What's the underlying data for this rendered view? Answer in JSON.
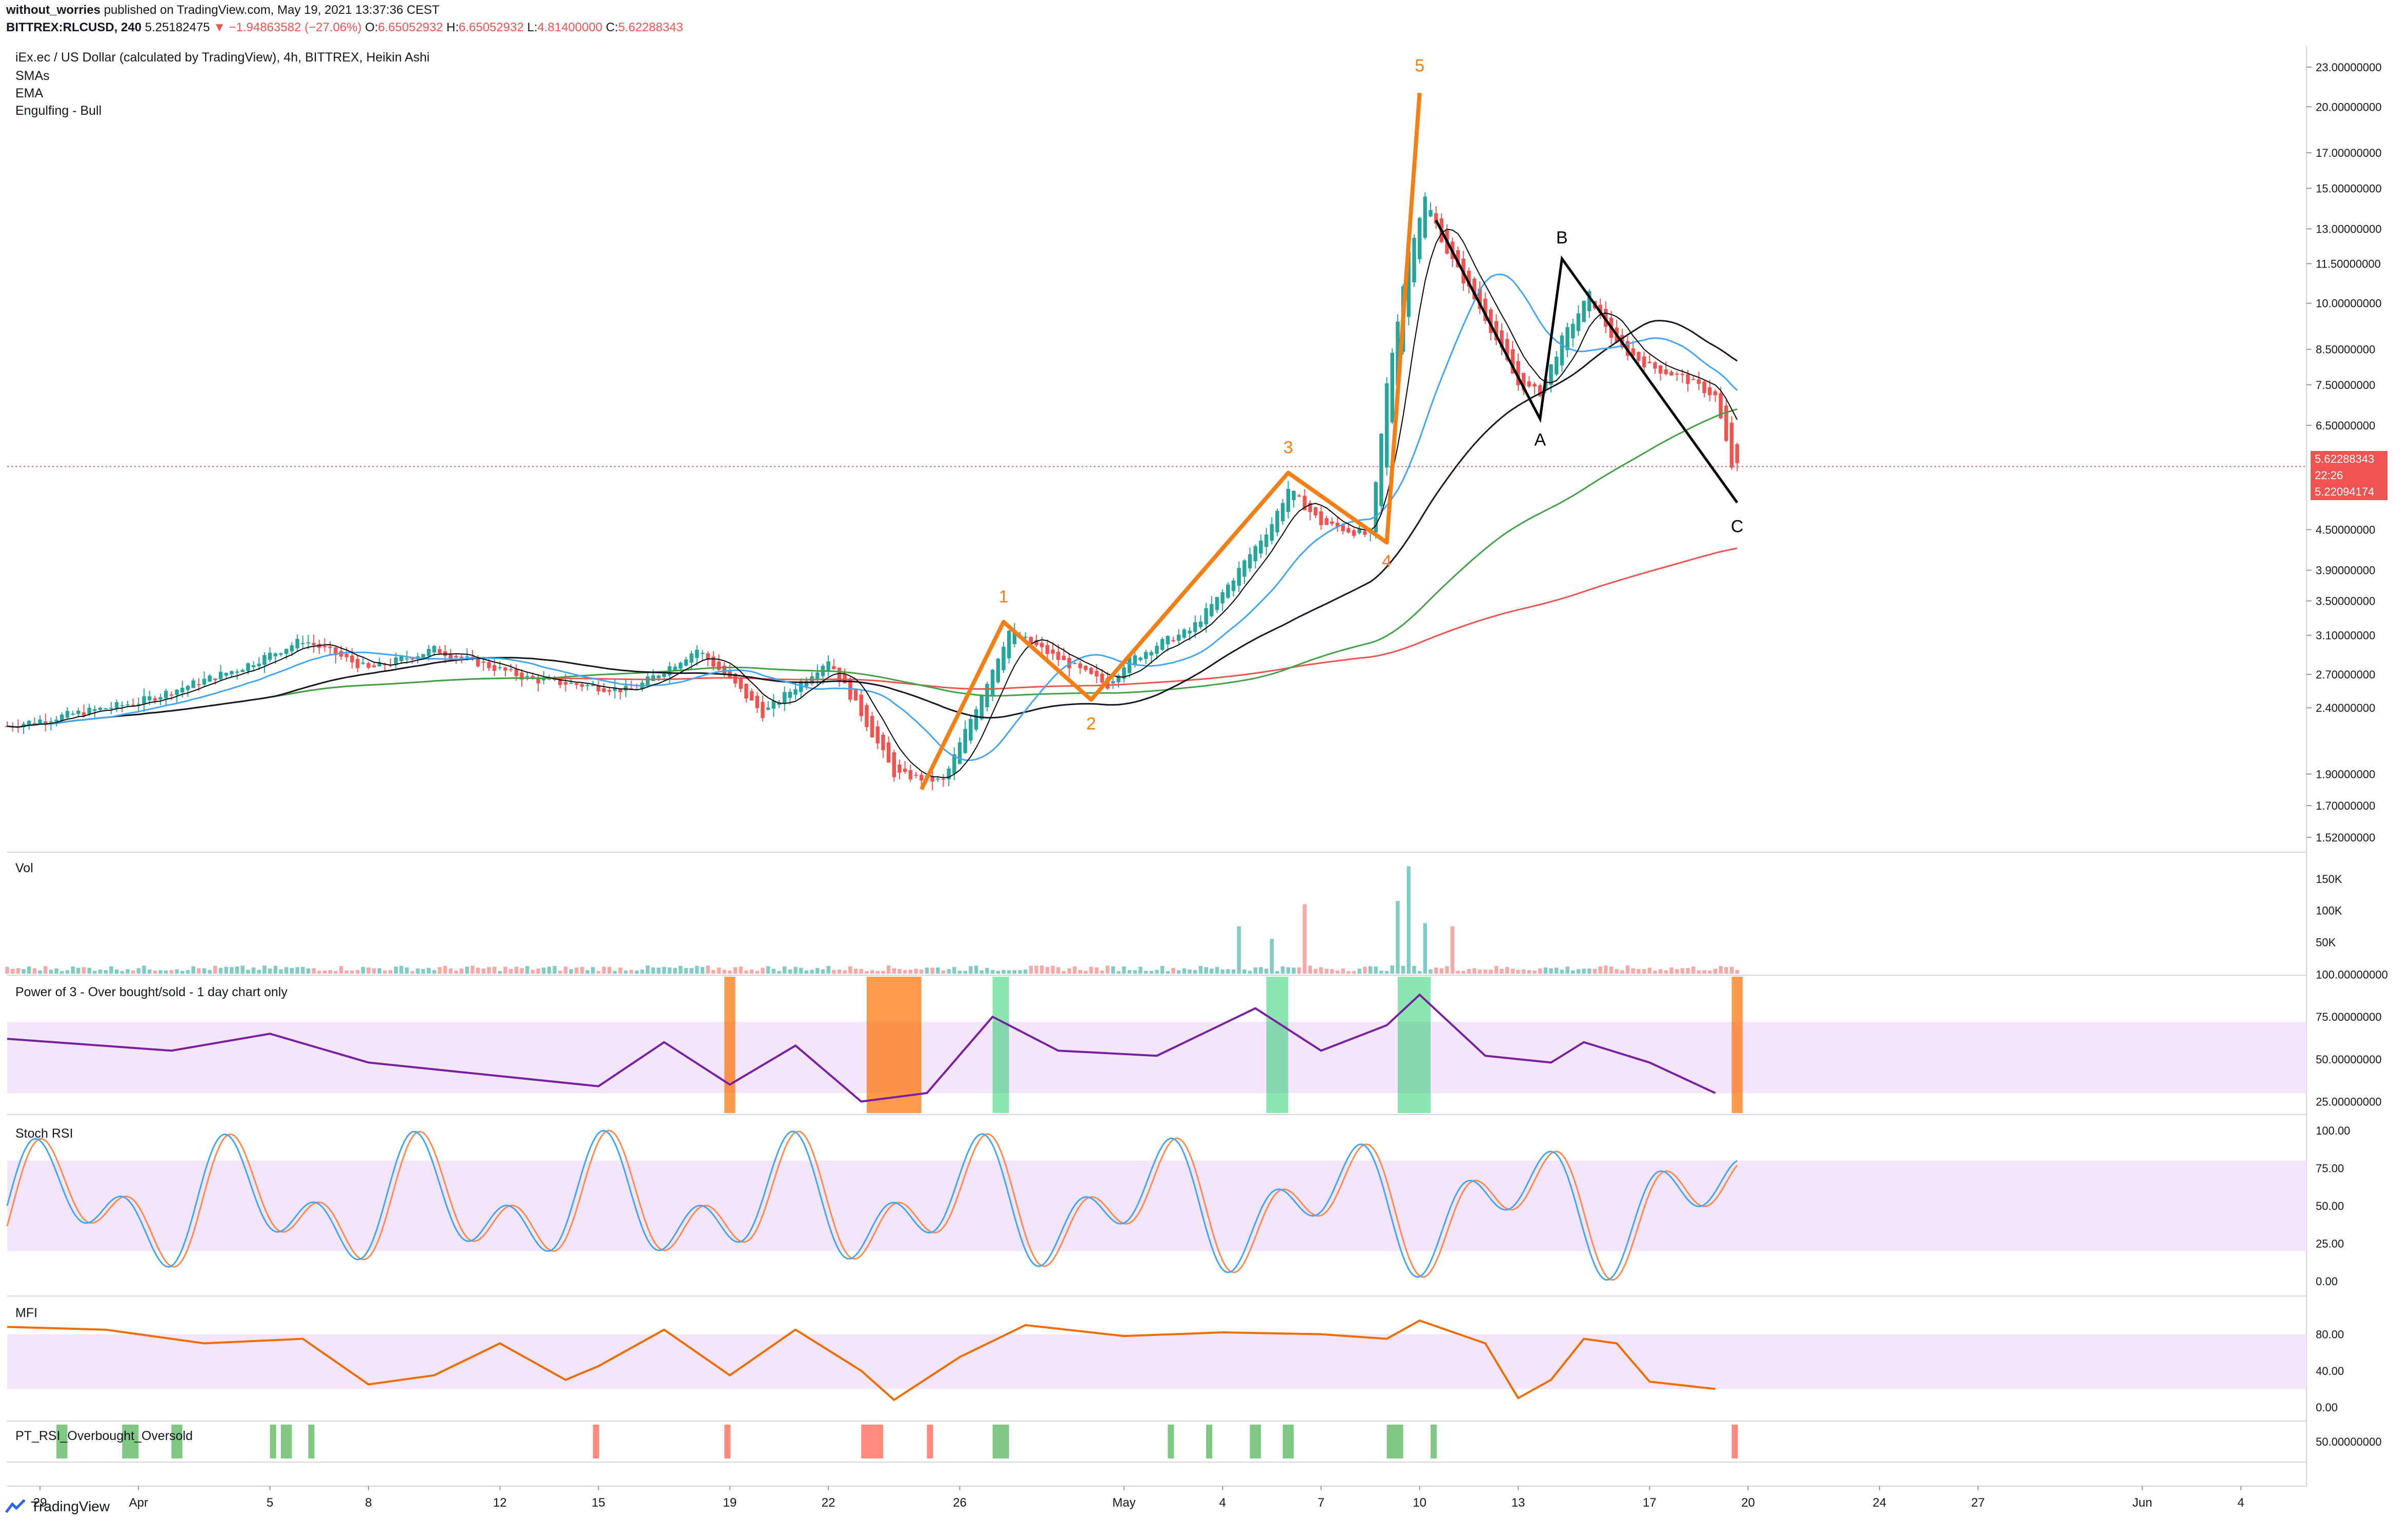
{
  "header": {
    "author": "without_worries",
    "published": "published on TradingView.com, May 19, 2021 13:37:36 CEST",
    "symbol": "BITTREX:RLCUSD, 240",
    "last": "5.25182475",
    "change_arrow": "▼",
    "change": "−1.94863582 (−27.06%)",
    "ohlc": {
      "o_label": "O:",
      "o": "6.65052932",
      "h_label": "H:",
      "h": "6.65052932",
      "l_label": "L:",
      "l": "4.81400000",
      "c_label": "C:",
      "c": "5.62288343"
    }
  },
  "legend": {
    "title": "iEx.ec / US Dollar (calculated by TradingView), 4h, BITTREX, Heikin Ashi",
    "indicators": [
      "SMAs",
      "EMA",
      "Engulfing - Bull"
    ],
    "pane_titles": {
      "volume": "Vol",
      "power3": "Power of 3 - Over bought/sold - 1 day chart only",
      "stoch": "Stoch RSI",
      "mfi": "MFI",
      "ptrsi": "PT_RSI_Overbought_Oversold"
    }
  },
  "price_tag": {
    "price": "5.62288343",
    "countdown": "22:26",
    "low": "5.22094174"
  },
  "colors": {
    "up": "#26a69a",
    "down": "#f05350",
    "wave": "#f57f17",
    "abc": "#000000",
    "sma_blue": "#42a5f5",
    "sma_black": "#131722",
    "sma_green": "#43a047",
    "sma_red": "#ef5350",
    "power_line": "#7b1fa2",
    "band_fill": "#f3e5fa",
    "stoch_k": "#42a5f5",
    "stoch_d": "#ff8a50",
    "mfi_line": "#ef6c00",
    "ob_green": "#00c853",
    "os_orange": "#ff6d00",
    "pt_green": "#4caf50",
    "pt_red": "#ff5252"
  },
  "footer": {
    "brand": "TradingView",
    "logo_icon": "tradingview-logo-icon"
  },
  "chart_data": {
    "type": "candlestick",
    "title": "iEx.ec / US Dollar (calculated by TradingView), 4h, BITTREX, Heikin Ashi",
    "x_axis": {
      "ticks": [
        "29",
        "Apr",
        "5",
        "8",
        "12",
        "15",
        "19",
        "22",
        "26",
        "May",
        "4",
        "7",
        "10",
        "13",
        "17",
        "20",
        "24",
        "27",
        "Jun",
        "4"
      ],
      "tick_dates": [
        "2021-03-29",
        "2021-04-01",
        "2021-04-05",
        "2021-04-08",
        "2021-04-12",
        "2021-04-15",
        "2021-04-19",
        "2021-04-22",
        "2021-04-26",
        "2021-05-01",
        "2021-05-04",
        "2021-05-07",
        "2021-05-10",
        "2021-05-13",
        "2021-05-17",
        "2021-05-20",
        "2021-05-24",
        "2021-05-27",
        "2021-06-01",
        "2021-06-04"
      ]
    },
    "y_axis": {
      "scale": "log",
      "ticks": [
        "23.00000000",
        "20.00000000",
        "17.00000000",
        "15.00000000",
        "13.00000000",
        "11.50000000",
        "10.00000000",
        "8.50000000",
        "7.50000000",
        "6.50000000",
        "5.62288343",
        "4.50000000",
        "3.90000000",
        "3.50000000",
        "3.10000000",
        "2.70000000",
        "2.40000000",
        "1.90000000",
        "1.70000000",
        "1.52000000"
      ],
      "range": [
        1.45,
        24.5
      ]
    },
    "price_key_points": [
      {
        "date": "2021-03-28T00:00",
        "close": 2.25
      },
      {
        "date": "2021-04-01T00:00",
        "close": 2.45
      },
      {
        "date": "2021-04-04T00:00",
        "close": 2.75
      },
      {
        "date": "2021-04-06T00:00",
        "close": 3.05
      },
      {
        "date": "2021-04-08T00:00",
        "close": 2.75
      },
      {
        "date": "2021-04-10T00:00",
        "close": 2.95
      },
      {
        "date": "2021-04-13T00:00",
        "close": 2.65
      },
      {
        "date": "2021-04-16T00:00",
        "close": 2.55
      },
      {
        "date": "2021-04-18T00:00",
        "close": 2.95
      },
      {
        "date": "2021-04-19T00:00",
        "close": 2.65
      },
      {
        "date": "2021-04-20T00:00",
        "close": 2.35
      },
      {
        "date": "2021-04-22T00:00",
        "close": 2.85
      },
      {
        "date": "2021-04-23T00:00",
        "close": 2.35
      },
      {
        "date": "2021-04-24T00:00",
        "close": 1.9
      },
      {
        "date": "2021-04-25T12:00",
        "close": 1.85
      },
      {
        "date": "2021-04-27T12:00",
        "close": 3.15
      },
      {
        "date": "2021-04-29T00:00",
        "close": 2.85
      },
      {
        "date": "2021-04-30T12:00",
        "close": 2.6
      },
      {
        "date": "2021-05-01T00:00",
        "close": 2.8
      },
      {
        "date": "2021-05-02T00:00",
        "close": 3.0
      },
      {
        "date": "2021-05-03T00:00",
        "close": 3.15
      },
      {
        "date": "2021-05-04T00:00",
        "close": 3.6
      },
      {
        "date": "2021-05-05T12:00",
        "close": 4.6
      },
      {
        "date": "2021-05-06T00:00",
        "close": 5.2
      },
      {
        "date": "2021-05-07T00:00",
        "close": 4.6
      },
      {
        "date": "2021-05-08T12:00",
        "close": 4.4
      },
      {
        "date": "2021-05-09T00:00",
        "close": 7.5
      },
      {
        "date": "2021-05-09T16:00",
        "close": 12.0
      },
      {
        "date": "2021-05-10T04:00",
        "close": 14.5
      },
      {
        "date": "2021-05-10T20:00",
        "close": 12.0
      },
      {
        "date": "2021-05-12T00:00",
        "close": 9.5
      },
      {
        "date": "2021-05-13T00:00",
        "close": 7.5
      },
      {
        "date": "2021-05-13T16:00",
        "close": 7.3
      },
      {
        "date": "2021-05-14T08:00",
        "close": 8.8
      },
      {
        "date": "2021-05-15T04:00",
        "close": 10.3
      },
      {
        "date": "2021-05-16T00:00",
        "close": 8.6
      },
      {
        "date": "2021-05-17T00:00",
        "close": 8.0
      },
      {
        "date": "2021-05-18T00:00",
        "close": 7.7
      },
      {
        "date": "2021-05-19T00:00",
        "close": 7.2
      },
      {
        "date": "2021-05-19T12:00",
        "close": 5.62
      }
    ],
    "elliott_wave_labels": [
      "1",
      "2",
      "3",
      "4",
      "5"
    ],
    "elliott_wave_points": [
      {
        "label": "",
        "date": "2021-04-24T20:00",
        "price": 1.8
      },
      {
        "label": "1",
        "date": "2021-04-27T08:00",
        "price": 3.25
      },
      {
        "label": "2",
        "date": "2021-04-30T00:00",
        "price": 2.47
      },
      {
        "label": "3",
        "date": "2021-05-06T00:00",
        "price": 5.5
      },
      {
        "label": "4",
        "date": "2021-05-09T00:00",
        "price": 4.3
      },
      {
        "label": "5",
        "date": "2021-05-10T00:00",
        "price": 21.0
      }
    ],
    "abc_points": [
      {
        "label": "",
        "date": "2021-05-10T12:00",
        "price": 13.4
      },
      {
        "label": "A",
        "date": "2021-05-13T16:00",
        "price": 6.65
      },
      {
        "label": "B",
        "date": "2021-05-14T08:00",
        "price": 11.7
      },
      {
        "label": "C",
        "date": "2021-05-19T16:00",
        "price": 4.95
      }
    ],
    "volume": {
      "ylabel_ticks": [
        "150K",
        "100K",
        "50K"
      ],
      "peaks": [
        {
          "date": "2021-05-04T12:00",
          "value": 75000
        },
        {
          "date": "2021-05-05T12:00",
          "value": 55000
        },
        {
          "date": "2021-05-06T12:00",
          "value": 110000
        },
        {
          "date": "2021-05-09T08:00",
          "value": 115000
        },
        {
          "date": "2021-05-09T16:00",
          "value": 170000
        },
        {
          "date": "2021-05-10T04:00",
          "value": 80000
        },
        {
          "date": "2021-05-11T00:00",
          "value": 75000
        }
      ]
    },
    "power_of_3": {
      "y_ticks": [
        "100.00000000",
        "75.00000000",
        "50.00000000",
        "25.00000000"
      ],
      "band": [
        30,
        72
      ],
      "key_points": [
        {
          "date": "2021-03-28",
          "v": 62
        },
        {
          "date": "2021-04-02",
          "v": 55
        },
        {
          "date": "2021-04-05",
          "v": 65
        },
        {
          "date": "2021-04-08",
          "v": 48
        },
        {
          "date": "2021-04-12",
          "v": 40
        },
        {
          "date": "2021-04-15",
          "v": 34
        },
        {
          "date": "2021-04-17",
          "v": 60
        },
        {
          "date": "2021-04-19",
          "v": 35
        },
        {
          "date": "2021-04-21",
          "v": 58
        },
        {
          "date": "2021-04-23",
          "v": 25
        },
        {
          "date": "2021-04-25",
          "v": 30
        },
        {
          "date": "2021-04-27",
          "v": 75
        },
        {
          "date": "2021-04-29",
          "v": 55
        },
        {
          "date": "2021-05-02",
          "v": 52
        },
        {
          "date": "2021-05-05",
          "v": 80
        },
        {
          "date": "2021-05-07",
          "v": 55
        },
        {
          "date": "2021-05-09",
          "v": 70
        },
        {
          "date": "2021-05-10",
          "v": 88
        },
        {
          "date": "2021-05-12",
          "v": 52
        },
        {
          "date": "2021-05-14",
          "v": 48
        },
        {
          "date": "2021-05-15",
          "v": 60
        },
        {
          "date": "2021-05-17",
          "v": 48
        },
        {
          "date": "2021-05-19",
          "v": 30
        }
      ],
      "highlights": [
        {
          "from": "2021-04-18T20:00",
          "to": "2021-04-19T04:00",
          "type": "orange"
        },
        {
          "from": "2021-04-23T04:00",
          "to": "2021-04-24T20:00",
          "type": "orange"
        },
        {
          "from": "2021-04-27T00:00",
          "to": "2021-04-27T12:00",
          "type": "green"
        },
        {
          "from": "2021-05-05T08:00",
          "to": "2021-05-06T00:00",
          "type": "green"
        },
        {
          "from": "2021-05-09T08:00",
          "to": "2021-05-10T08:00",
          "type": "green"
        },
        {
          "from": "2021-05-19T12:00",
          "to": "2021-05-19T20:00",
          "type": "orange"
        }
      ]
    },
    "stoch_rsi": {
      "y_ticks": [
        "100.00",
        "75.00",
        "50.00",
        "25.00",
        "0.00"
      ],
      "band": [
        20,
        80
      ]
    },
    "mfi": {
      "y_ticks": [
        "80.00",
        "40.00",
        "0.00"
      ],
      "band": [
        20,
        80
      ],
      "key_points": [
        {
          "date": "2021-03-28",
          "v": 88
        },
        {
          "date": "2021-03-31",
          "v": 85
        },
        {
          "date": "2021-04-03",
          "v": 70
        },
        {
          "date": "2021-04-06",
          "v": 75
        },
        {
          "date": "2021-04-08",
          "v": 25
        },
        {
          "date": "2021-04-10",
          "v": 35
        },
        {
          "date": "2021-04-12",
          "v": 70
        },
        {
          "date": "2021-04-14",
          "v": 30
        },
        {
          "date": "2021-04-15",
          "v": 45
        },
        {
          "date": "2021-04-17",
          "v": 85
        },
        {
          "date": "2021-04-19",
          "v": 35
        },
        {
          "date": "2021-04-21",
          "v": 85
        },
        {
          "date": "2021-04-23",
          "v": 40
        },
        {
          "date": "2021-04-24",
          "v": 8
        },
        {
          "date": "2021-04-26",
          "v": 55
        },
        {
          "date": "2021-04-28",
          "v": 90
        },
        {
          "date": "2021-05-01",
          "v": 78
        },
        {
          "date": "2021-05-04",
          "v": 82
        },
        {
          "date": "2021-05-07",
          "v": 80
        },
        {
          "date": "2021-05-09",
          "v": 75
        },
        {
          "date": "2021-05-10",
          "v": 95
        },
        {
          "date": "2021-05-12",
          "v": 70
        },
        {
          "date": "2021-05-13",
          "v": 10
        },
        {
          "date": "2021-05-14",
          "v": 30
        },
        {
          "date": "2021-05-15",
          "v": 75
        },
        {
          "date": "2021-05-16",
          "v": 70
        },
        {
          "date": "2021-05-17",
          "v": 28
        },
        {
          "date": "2021-05-19",
          "v": 20
        }
      ]
    },
    "pt_rsi": {
      "y_ticks": [
        "50.00000000"
      ],
      "bars": [
        {
          "date": "2021-03-29T12:00",
          "dur": 8,
          "type": "green"
        },
        {
          "date": "2021-03-31T12:00",
          "dur": 12,
          "type": "green"
        },
        {
          "date": "2021-04-02T00:00",
          "dur": 8,
          "type": "green"
        },
        {
          "date": "2021-04-05T00:00",
          "dur": 4,
          "type": "green"
        },
        {
          "date": "2021-04-05T08:00",
          "dur": 8,
          "type": "green"
        },
        {
          "date": "2021-04-06T04:00",
          "dur": 4,
          "type": "green"
        },
        {
          "date": "2021-04-14T20:00",
          "dur": 4,
          "type": "red"
        },
        {
          "date": "2021-04-18T20:00",
          "dur": 4,
          "type": "red"
        },
        {
          "date": "2021-04-23T00:00",
          "dur": 16,
          "type": "red"
        },
        {
          "date": "2021-04-25T00:00",
          "dur": 4,
          "type": "red"
        },
        {
          "date": "2021-04-27T00:00",
          "dur": 12,
          "type": "green"
        },
        {
          "date": "2021-05-02T08:00",
          "dur": 4,
          "type": "green"
        },
        {
          "date": "2021-05-03T12:00",
          "dur": 4,
          "type": "green"
        },
        {
          "date": "2021-05-04T20:00",
          "dur": 8,
          "type": "green"
        },
        {
          "date": "2021-05-05T20:00",
          "dur": 8,
          "type": "green"
        },
        {
          "date": "2021-05-09T00:00",
          "dur": 12,
          "type": "green"
        },
        {
          "date": "2021-05-10T08:00",
          "dur": 4,
          "type": "green"
        },
        {
          "date": "2021-05-19T12:00",
          "dur": 4,
          "type": "red"
        }
      ]
    }
  }
}
